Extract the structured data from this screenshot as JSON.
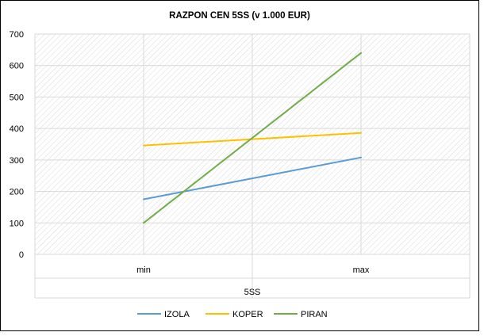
{
  "chart_data": {
    "type": "line",
    "title": "RAZPON CEN 5SS (v 1.000 EUR)",
    "xlabel": "",
    "ylabel": "",
    "categories": [
      "min",
      "max"
    ],
    "category_group_label": "5SS",
    "ylim": [
      0,
      700
    ],
    "yticks": [
      0,
      100,
      200,
      300,
      400,
      500,
      600,
      700
    ],
    "grid": true,
    "legend_position": "bottom",
    "series": [
      {
        "name": "IZOLA",
        "color": "#5b9bd5",
        "values": [
          175,
          308
        ]
      },
      {
        "name": "KOPER",
        "color": "#ffc000",
        "values": [
          346,
          386
        ]
      },
      {
        "name": "PIRAN",
        "color": "#70ad47",
        "values": [
          100,
          640
        ]
      }
    ]
  }
}
